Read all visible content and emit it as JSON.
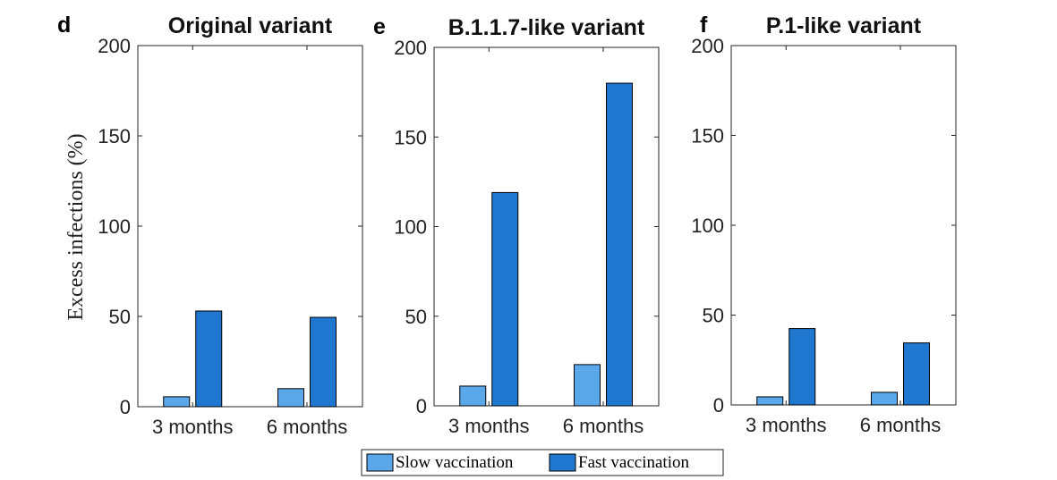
{
  "colors": {
    "slow": "#5aa7ea",
    "fast": "#1f77d0"
  },
  "ylabel": "Excess infections (%)",
  "legend": {
    "items": [
      "Slow vaccination",
      "Fast vaccination"
    ],
    "location": "bottom-center"
  },
  "panels": [
    {
      "letter": "d",
      "title": "Original variant"
    },
    {
      "letter": "e",
      "title": "B.1.1.7-like variant"
    },
    {
      "letter": "f",
      "title": "P.1-like variant"
    }
  ],
  "chart_data": [
    {
      "type": "bar",
      "title": "Original variant",
      "categories": [
        "3 months",
        "6 months"
      ],
      "series": [
        {
          "name": "Slow vaccination",
          "values": [
            5.5,
            10
          ]
        },
        {
          "name": "Fast vaccination",
          "values": [
            53,
            49.5
          ]
        }
      ],
      "ylabel": "Excess infections (%)",
      "ylim": [
        0,
        200
      ],
      "yticks": [
        0,
        50,
        100,
        150,
        200
      ],
      "grid": false
    },
    {
      "type": "bar",
      "title": "B.1.1.7-like variant",
      "categories": [
        "3 months",
        "6 months"
      ],
      "series": [
        {
          "name": "Slow vaccination",
          "values": [
            11,
            23
          ]
        },
        {
          "name": "Fast vaccination",
          "values": [
            119,
            180
          ]
        }
      ],
      "ylim": [
        0,
        200
      ],
      "yticks": [
        0,
        50,
        100,
        150,
        200
      ],
      "grid": false
    },
    {
      "type": "bar",
      "title": "P.1-like variant",
      "categories": [
        "3 months",
        "6 months"
      ],
      "series": [
        {
          "name": "Slow vaccination",
          "values": [
            4.5,
            7
          ]
        },
        {
          "name": "Fast vaccination",
          "values": [
            42.5,
            34.5
          ]
        }
      ],
      "ylim": [
        0,
        200
      ],
      "yticks": [
        0,
        50,
        100,
        150,
        200
      ],
      "grid": false
    }
  ]
}
